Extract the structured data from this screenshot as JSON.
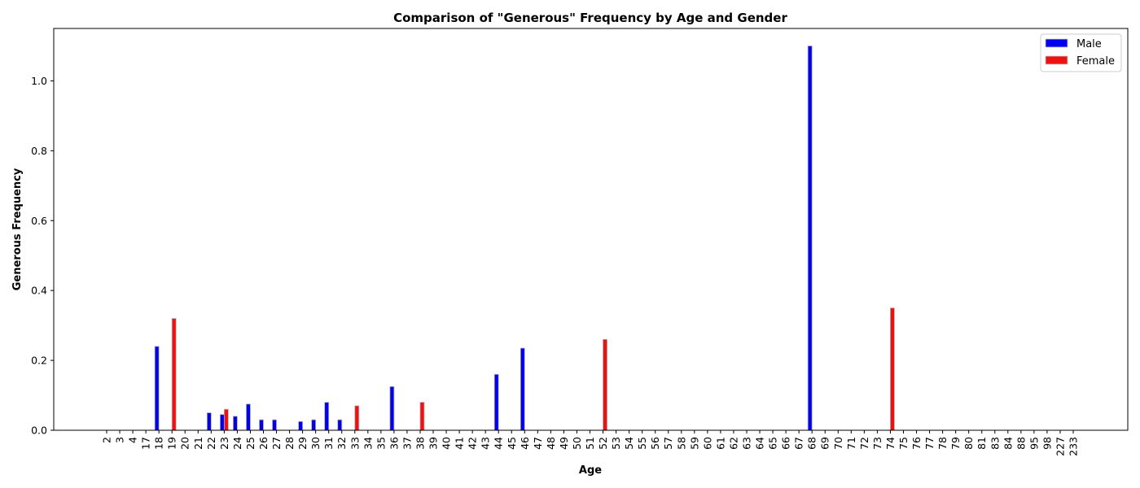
{
  "chart_data": {
    "type": "bar",
    "title": "Comparison of \"Generous\" Frequency by Age and Gender",
    "xlabel": "Age",
    "ylabel": "Generous Frequency",
    "ylim": [
      0,
      1.15
    ],
    "yticks": [
      0.0,
      0.2,
      0.4,
      0.6,
      0.8,
      1.0
    ],
    "ytick_labels": [
      "0.0",
      "0.2",
      "0.4",
      "0.6",
      "0.8",
      "1.0"
    ],
    "grid": false,
    "legend_position": "top-right",
    "categories": [
      "2",
      "3",
      "4",
      "17",
      "18",
      "19",
      "20",
      "21",
      "22",
      "23",
      "24",
      "25",
      "26",
      "27",
      "28",
      "29",
      "30",
      "31",
      "32",
      "33",
      "34",
      "35",
      "36",
      "37",
      "38",
      "39",
      "40",
      "41",
      "42",
      "43",
      "44",
      "45",
      "46",
      "47",
      "48",
      "49",
      "50",
      "51",
      "52",
      "53",
      "54",
      "55",
      "56",
      "57",
      "58",
      "59",
      "60",
      "61",
      "62",
      "63",
      "64",
      "65",
      "66",
      "67",
      "68",
      "69",
      "70",
      "71",
      "72",
      "73",
      "74",
      "75",
      "76",
      "77",
      "78",
      "79",
      "80",
      "81",
      "83",
      "84",
      "88",
      "95",
      "98",
      "227",
      "233"
    ],
    "series": [
      {
        "name": "Male",
        "color": "#0000ee",
        "values": {
          "18": 0.24,
          "22": 0.05,
          "23": 0.045,
          "24": 0.04,
          "25": 0.075,
          "26": 0.03,
          "27": 0.03,
          "29": 0.025,
          "30": 0.03,
          "31": 0.08,
          "32": 0.03,
          "36": 0.125,
          "44": 0.16,
          "46": 0.235,
          "68": 1.1
        }
      },
      {
        "name": "Female",
        "color": "#ee1111",
        "values": {
          "19": 0.32,
          "23": 0.06,
          "33": 0.07,
          "38": 0.08,
          "52": 0.26,
          "74": 0.35
        }
      }
    ]
  }
}
